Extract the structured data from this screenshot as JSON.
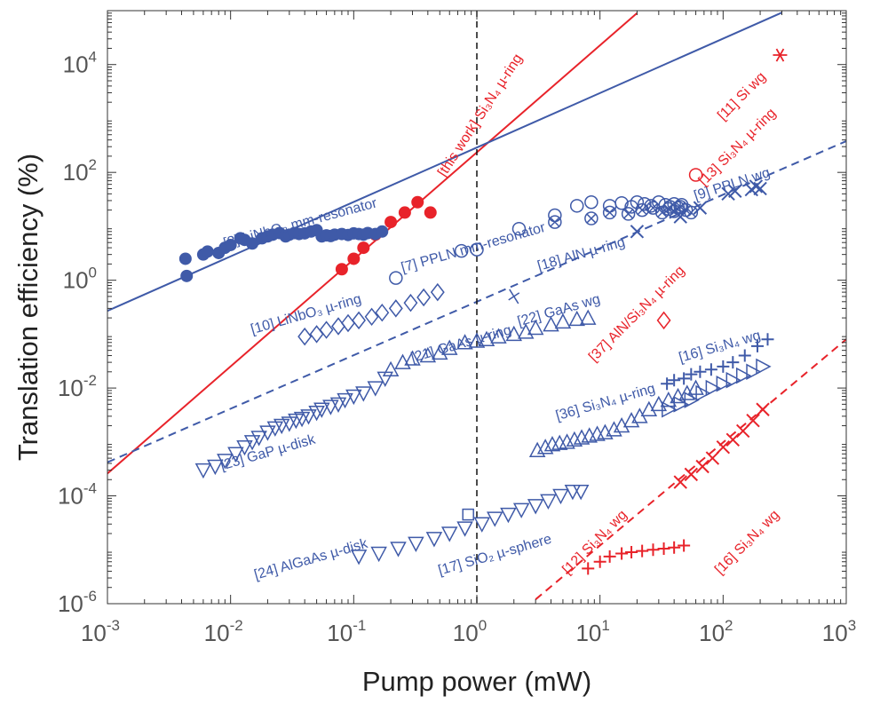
{
  "chart_data": {
    "type": "scatter",
    "xscale": "log",
    "yscale": "log",
    "xlim": [
      0.001,
      1000
    ],
    "ylim": [
      1e-06,
      100000
    ],
    "xlabel": "Pump power (mW)",
    "ylabel": "Translation efficiency (%)",
    "x_ticks": [
      {
        "value": 0.001,
        "base": "10",
        "exp": "-3"
      },
      {
        "value": 0.01,
        "base": "10",
        "exp": "-2"
      },
      {
        "value": 0.1,
        "base": "10",
        "exp": "-1"
      },
      {
        "value": 1,
        "base": "10",
        "exp": "0"
      },
      {
        "value": 10,
        "base": "10",
        "exp": "1"
      },
      {
        "value": 100,
        "base": "10",
        "exp": "2"
      },
      {
        "value": 1000,
        "base": "10",
        "exp": "3"
      }
    ],
    "y_ticks": [
      {
        "value": 1e-06,
        "base": "10",
        "exp": "-6"
      },
      {
        "value": 0.0001,
        "base": "10",
        "exp": "-4"
      },
      {
        "value": 0.01,
        "base": "10",
        "exp": "-2"
      },
      {
        "value": 1,
        "base": "10",
        "exp": "0"
      },
      {
        "value": 100,
        "base": "10",
        "exp": "2"
      },
      {
        "value": 10000,
        "base": "10",
        "exp": "4"
      }
    ],
    "reference_line": {
      "x": 1
    },
    "colors": {
      "blue": "#3f5aa8",
      "red": "#e8232a",
      "axis": "#333333",
      "tick_text": "#555555"
    },
    "fit_lines": [
      {
        "name": "[this work] Si3N4 µ-ring fit",
        "color": "red",
        "style": "solid",
        "x": [
          0.001,
          20
        ],
        "y": [
          0.00026,
          90000
        ]
      },
      {
        "name": "[8] LiNbO3 mm-resonator fit",
        "color": "blue",
        "style": "solid",
        "x": [
          0.001,
          300
        ],
        "y": [
          0.27,
          92000
        ]
      },
      {
        "name": "[9] PPLN wg fit",
        "color": "blue",
        "style": "dashed",
        "x": [
          0.001,
          1000
        ],
        "y": [
          0.00042,
          380
        ]
      },
      {
        "name": "[16] Si3N4 wg fit",
        "color": "red",
        "style": "dashed",
        "x": [
          3,
          1000
        ],
        "y": [
          1.2e-06,
          0.08
        ]
      }
    ],
    "series": [
      {
        "name": "[this work]",
        "color": "red",
        "marker": "filled-circle",
        "x": [
          0.08,
          0.1,
          0.12,
          0.15,
          0.2,
          0.26,
          0.33,
          0.42
        ],
        "y": [
          1.6,
          2.5,
          4.0,
          7.0,
          12,
          18,
          28,
          18
        ]
      },
      {
        "name": "[8]",
        "color": "blue",
        "marker": "filled-circle",
        "x": [
          0.0043,
          0.0044,
          0.006,
          0.0065,
          0.008,
          0.009,
          0.01,
          0.012,
          0.013,
          0.015,
          0.018,
          0.02,
          0.022,
          0.025,
          0.028,
          0.03,
          0.033,
          0.036,
          0.04,
          0.045,
          0.05,
          0.055,
          0.06,
          0.065,
          0.07,
          0.08,
          0.09,
          0.1,
          0.11,
          0.12,
          0.13,
          0.15,
          0.17
        ],
        "y": [
          2.5,
          1.2,
          3.0,
          3.4,
          3.2,
          4.0,
          4.5,
          6.0,
          5.6,
          4.8,
          6.0,
          6.5,
          7.0,
          7.5,
          6.5,
          7.0,
          7.5,
          7.2,
          7.4,
          8.0,
          8.5,
          6.5,
          6.8,
          6.6,
          7.0,
          7.2,
          6.9,
          7.4,
          7.2,
          7.0,
          7.5,
          7.2,
          8.0
        ]
      },
      {
        "name": "[7]",
        "color": "blue",
        "marker": "open-circle",
        "x": [
          0.22,
          0.75,
          1.0,
          2.2,
          4.3,
          6.5,
          8.5,
          12,
          15,
          18,
          20,
          23,
          26,
          30,
          34,
          37,
          40,
          43,
          46
        ],
        "y": [
          1.1,
          3.5,
          3.7,
          9.0,
          16,
          24,
          28,
          24,
          27,
          23,
          28,
          26,
          24,
          28,
          25,
          23,
          26,
          22,
          25
        ]
      },
      {
        "name": "[18]",
        "color": "blue",
        "marker": "circle-x",
        "x": [
          4.3,
          8.5,
          12,
          17,
          22,
          27,
          32,
          36,
          40,
          45,
          50,
          55
        ],
        "y": [
          12,
          14,
          18,
          17,
          20,
          22,
          18,
          21,
          19,
          23,
          20,
          18
        ]
      },
      {
        "name": "[9]",
        "color": "blue",
        "marker": "x",
        "x": [
          20,
          45,
          65,
          110,
          125,
          170,
          185,
          200
        ],
        "y": [
          8,
          15,
          22,
          40,
          45,
          48,
          55,
          50
        ]
      },
      {
        "name": "[13]",
        "color": "red",
        "marker": "open-circle",
        "x": [
          60
        ],
        "y": [
          90
        ]
      },
      {
        "name": "[11]",
        "color": "red",
        "marker": "asterisk",
        "x": [
          290
        ],
        "y": [
          15000
        ]
      },
      {
        "name": "[10]",
        "color": "blue",
        "marker": "diamond",
        "x": [
          0.04,
          0.05,
          0.06,
          0.075,
          0.09,
          0.11,
          0.14,
          0.17,
          0.22,
          0.29,
          0.37,
          0.48
        ],
        "y": [
          0.09,
          0.1,
          0.12,
          0.14,
          0.16,
          0.18,
          0.21,
          0.25,
          0.3,
          0.38,
          0.48,
          0.6
        ]
      },
      {
        "name": "[37]",
        "color": "red",
        "marker": "diamond",
        "x": [
          33
        ],
        "y": [
          0.18
        ]
      },
      {
        "name": "[22]",
        "color": "blue",
        "marker": "x-single",
        "x": [
          2.0
        ],
        "y": [
          0.5
        ]
      },
      {
        "name": "[21]",
        "color": "blue",
        "marker": "triangle-up",
        "x": [
          0.2,
          0.25,
          0.3,
          0.4,
          0.5,
          0.6,
          0.8,
          1.0,
          1.2,
          1.5,
          2.0,
          2.5,
          3.0,
          4.0,
          5.0,
          6.5,
          8.0
        ],
        "y": [
          0.022,
          0.03,
          0.035,
          0.04,
          0.045,
          0.055,
          0.07,
          0.075,
          0.08,
          0.09,
          0.1,
          0.11,
          0.13,
          0.15,
          0.17,
          0.19,
          0.2
        ]
      },
      {
        "name": "[23]",
        "color": "blue",
        "marker": "triangle-down",
        "x": [
          0.006,
          0.0075,
          0.009,
          0.011,
          0.013,
          0.015,
          0.017,
          0.02,
          0.023,
          0.026,
          0.03,
          0.034,
          0.038,
          0.043,
          0.05,
          0.055,
          0.065,
          0.075,
          0.085,
          0.1,
          0.12,
          0.15,
          0.18
        ],
        "y": [
          0.0003,
          0.00035,
          0.00045,
          0.0006,
          0.0008,
          0.001,
          0.0012,
          0.0015,
          0.0018,
          0.002,
          0.0022,
          0.0025,
          0.0027,
          0.003,
          0.0035,
          0.004,
          0.0045,
          0.005,
          0.006,
          0.007,
          0.008,
          0.01,
          0.015
        ]
      },
      {
        "name": "[36]",
        "color": "blue",
        "marker": "triangle-up",
        "x": [
          3.1,
          3.6,
          4.1,
          4.7,
          5.4,
          6.2,
          7.1,
          8.2,
          9.5,
          11,
          13,
          15,
          18,
          21,
          25,
          30,
          36,
          43,
          51,
          60
        ],
        "y": [
          0.0007,
          0.0008,
          0.0009,
          0.00095,
          0.001,
          0.0011,
          0.0012,
          0.0013,
          0.0014,
          0.0015,
          0.0017,
          0.002,
          0.0025,
          0.003,
          0.004,
          0.005,
          0.006,
          0.007,
          0.008,
          0.01
        ]
      },
      {
        "name": "[16] Si3N4 wg (triangles)",
        "color": "blue",
        "marker": "triangle-right",
        "x": [
          36,
          45,
          55,
          68,
          82,
          100,
          120,
          145,
          175,
          210
        ],
        "y": [
          0.004,
          0.005,
          0.006,
          0.008,
          0.01,
          0.012,
          0.014,
          0.017,
          0.02,
          0.025
        ]
      },
      {
        "name": "[16] Si3N4 wg (plus)",
        "color": "blue",
        "marker": "plus",
        "x": [
          35,
          40,
          48,
          55,
          65,
          80,
          100,
          120,
          150,
          190,
          230
        ],
        "y": [
          0.012,
          0.014,
          0.015,
          0.018,
          0.02,
          0.022,
          0.025,
          0.03,
          0.04,
          0.06,
          0.08
        ]
      },
      {
        "name": "[24]",
        "color": "blue",
        "marker": "triangle-down",
        "x": [
          0.11,
          0.16,
          0.23,
          0.32,
          0.45,
          0.6,
          0.8,
          1.1,
          1.4,
          1.8,
          2.3,
          3.0,
          3.8,
          4.8,
          6.0,
          7.0
        ],
        "y": [
          7.5e-06,
          8.5e-06,
          1.05e-05,
          1.3e-05,
          1.6e-05,
          2e-05,
          2.5e-05,
          3e-05,
          3.8e-05,
          4.5e-05,
          5.5e-05,
          6.5e-05,
          8e-05,
          0.0001,
          0.00012,
          0.00012
        ]
      },
      {
        "name": "[17]",
        "color": "blue",
        "marker": "square",
        "x": [
          0.85
        ],
        "y": [
          4.5e-05
        ]
      },
      {
        "name": "[12]",
        "color": "red",
        "marker": "plus",
        "x": [
          8,
          10,
          12,
          15,
          18,
          22,
          27,
          33,
          40,
          48
        ],
        "y": [
          4.5e-06,
          6e-06,
          7.5e-06,
          8.5e-06,
          9e-06,
          9.5e-06,
          1e-05,
          1.05e-05,
          1.1e-05,
          1.2e-05
        ]
      },
      {
        "name": "[16] Si3N4 wg (red x)",
        "color": "red",
        "marker": "x",
        "x": [
          45,
          55,
          68,
          82,
          100,
          120,
          145,
          175,
          210
        ],
        "y": [
          0.00018,
          0.00025,
          0.00035,
          0.0005,
          0.0008,
          0.0011,
          0.0016,
          0.0025,
          0.004
        ]
      }
    ],
    "annotations": [
      {
        "text": "[8] LiNbO₃ mm-resonator",
        "color": "blue",
        "x": 0.009,
        "y": 4,
        "rotate": -15
      },
      {
        "text": "[this work] Si₃N₄ µ-ring",
        "color": "red",
        "x": 0.55,
        "y": 80,
        "rotate": -57
      },
      {
        "text": "[7] PPLN mm-resonator",
        "color": "blue",
        "x": 0.25,
        "y": 1.4,
        "rotate": -16
      },
      {
        "text": "[18] AlN µ-ring",
        "color": "blue",
        "x": 3.2,
        "y": 1.5,
        "rotate": -16
      },
      {
        "text": "[9] PPLN wg",
        "color": "blue",
        "x": 60,
        "y": 30,
        "rotate": -18
      },
      {
        "text": "[13] Si₃N₄ µ-ring",
        "color": "red",
        "x": 70,
        "y": 55,
        "rotate": -45
      },
      {
        "text": "[11] Si wg",
        "color": "red",
        "x": 100,
        "y": 900,
        "rotate": -45
      },
      {
        "text": "[10] LiNbO₃ µ-ring",
        "color": "blue",
        "x": 0.015,
        "y": 0.1,
        "rotate": -16
      },
      {
        "text": "[22] GaAs wg",
        "color": "blue",
        "x": 2.2,
        "y": 0.14,
        "rotate": -16
      },
      {
        "text": "[21] GaAs µ-ring",
        "color": "blue",
        "x": 0.3,
        "y": 0.03,
        "rotate": -16
      },
      {
        "text": "[37] AlN/Si₃N₄ µ-ring",
        "color": "red",
        "x": 9,
        "y": 0.03,
        "rotate": -45
      },
      {
        "text": "[16] Si₃N₄ wg",
        "color": "blue",
        "x": 45,
        "y": 0.03,
        "rotate": -16
      },
      {
        "text": "[23] GaP µ-disk",
        "color": "blue",
        "x": 0.0085,
        "y": 0.0003,
        "rotate": -16
      },
      {
        "text": "[36] Si₃N₄ µ-ring",
        "color": "blue",
        "x": 4.5,
        "y": 0.0025,
        "rotate": -16
      },
      {
        "text": "[24] AlGaAs µ-disk",
        "color": "blue",
        "x": 0.016,
        "y": 2.8e-06,
        "rotate": -16
      },
      {
        "text": "[17] SiO₂ µ-sphere",
        "color": "blue",
        "x": 0.5,
        "y": 3.4e-06,
        "rotate": -16
      },
      {
        "text": "[12] Si₃N₄ wg",
        "color": "red",
        "x": 5.5,
        "y": 3.4e-06,
        "rotate": -45
      },
      {
        "text": "[16] Si₃N₄ wg",
        "color": "red",
        "x": 95,
        "y": 3.4e-06,
        "rotate": -45
      }
    ]
  }
}
